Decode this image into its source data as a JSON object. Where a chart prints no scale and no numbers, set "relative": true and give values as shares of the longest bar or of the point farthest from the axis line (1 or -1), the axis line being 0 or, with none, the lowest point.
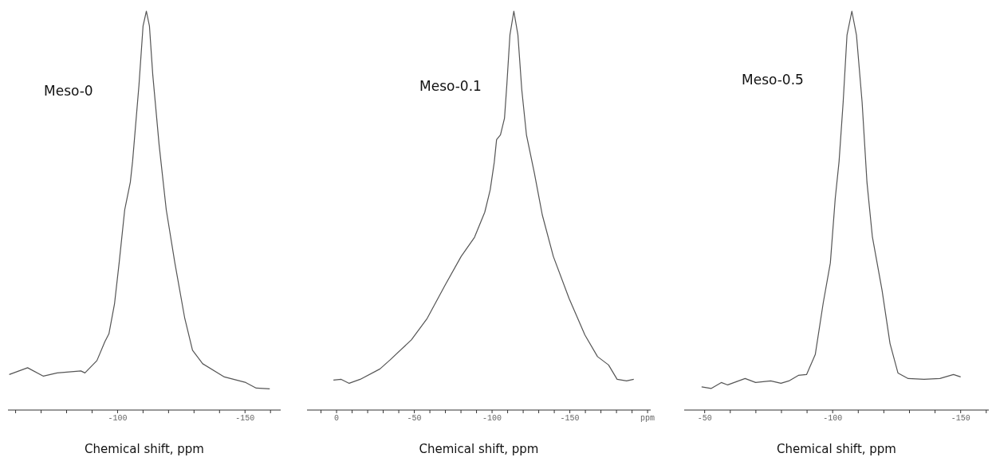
{
  "chart_data": [
    {
      "type": "line",
      "relative": true,
      "tick_labels": "x",
      "xlabel": "Chemical shift, ppm",
      "xlim": [
        -57,
        -164
      ],
      "xticks": [
        {
          "value": -60,
          "label": null
        },
        {
          "value": -70,
          "label": null
        },
        {
          "value": -80,
          "label": null
        },
        {
          "value": -90,
          "label": null
        },
        -100,
        {
          "value": -110,
          "label": null
        },
        {
          "value": -120,
          "label": null
        },
        {
          "value": -130,
          "label": null
        },
        {
          "value": -140,
          "label": null
        },
        -150,
        {
          "value": -160,
          "label": null
        }
      ],
      "x": [
        -57.5,
        -64.7,
        -70.9,
        -76.3,
        -85.6,
        -87.2,
        -91.9,
        -95,
        -96.6,
        -98.8,
        -100.6,
        -102.8,
        -105,
        -105.9,
        -108.4,
        -110,
        -111.3,
        -112.5,
        -113.8,
        -116.3,
        -119.1,
        -122.5,
        -126.3,
        -129.4,
        -133.4,
        -141.9,
        -150.3,
        -154.4,
        -159.7
      ],
      "series": [
        {
          "name": "Meso-0",
          "color": "#555555",
          "values": [
            0.089,
            0.106,
            0.085,
            0.093,
            0.098,
            0.093,
            0.124,
            0.171,
            0.191,
            0.266,
            0.368,
            0.502,
            0.571,
            0.624,
            0.815,
            0.963,
            1,
            0.963,
            0.841,
            0.665,
            0.502,
            0.368,
            0.232,
            0.15,
            0.116,
            0.083,
            0.069,
            0.055,
            0.053
          ]
        }
      ]
    },
    {
      "type": "line",
      "relative": true,
      "tick_labels": "x",
      "xlabel": "Chemical shift, ppm",
      "xlim": [
        19,
        -202
      ],
      "xticks": [
        {
          "value": 10,
          "label": null
        },
        0,
        {
          "value": -10,
          "label": null
        },
        {
          "value": -20,
          "label": null
        },
        {
          "value": -30,
          "label": null
        },
        {
          "value": -40,
          "label": null
        },
        -50,
        {
          "value": -60,
          "label": null
        },
        {
          "value": -70,
          "label": null
        },
        {
          "value": -80,
          "label": null
        },
        {
          "value": -90,
          "label": null
        },
        -100,
        {
          "value": -110,
          "label": null
        },
        {
          "value": -120,
          "label": null
        },
        {
          "value": -130,
          "label": null
        },
        {
          "value": -140,
          "label": null
        },
        -150,
        {
          "value": -160,
          "label": null
        },
        {
          "value": -170,
          "label": null
        },
        {
          "value": -180,
          "label": null
        },
        {
          "value": -190,
          "label": null
        },
        {
          "value": -200,
          "label": "ppm"
        }
      ],
      "x": [
        2,
        -3,
        -8.1,
        -15.2,
        -27.9,
        -34.5,
        -48.1,
        -58.3,
        -69.9,
        -80.1,
        -88.7,
        -95.3,
        -98.8,
        -101.4,
        -102.9,
        -105.4,
        -108,
        -109.5,
        -111.5,
        -114,
        -116.6,
        -119.1,
        -122.1,
        -127.2,
        -132.3,
        -139.4,
        -149.5,
        -159.7,
        -167.8,
        -174.9,
        -180.4,
        -186.5,
        -191.1
      ],
      "series": [
        {
          "name": "Meso-0.1",
          "color": "#555555",
          "values": [
            0.075,
            0.077,
            0.067,
            0.077,
            0.103,
            0.126,
            0.176,
            0.23,
            0.314,
            0.385,
            0.433,
            0.496,
            0.552,
            0.621,
            0.678,
            0.69,
            0.732,
            0.816,
            0.941,
            1,
            0.941,
            0.803,
            0.69,
            0.594,
            0.489,
            0.385,
            0.28,
            0.188,
            0.134,
            0.113,
            0.077,
            0.073,
            0.077
          ]
        }
      ]
    },
    {
      "type": "line",
      "relative": true,
      "tick_labels": "x",
      "xlabel": "Chemical shift, ppm",
      "xlim": [
        -42,
        -161
      ],
      "xticks": [
        -50,
        {
          "value": -60,
          "label": null
        },
        {
          "value": -70,
          "label": null
        },
        {
          "value": -80,
          "label": null
        },
        {
          "value": -90,
          "label": null
        },
        -100,
        {
          "value": -110,
          "label": null
        },
        {
          "value": -120,
          "label": null
        },
        {
          "value": -130,
          "label": null
        },
        {
          "value": -140,
          "label": null
        },
        -150,
        {
          "value": -160,
          "label": null
        }
      ],
      "x": [
        -48.8,
        -52.5,
        -56.5,
        -59,
        -65.8,
        -69.9,
        -75.8,
        -79.8,
        -82.9,
        -86.6,
        -89.8,
        -93.2,
        -96.3,
        -99.1,
        -101,
        -102.5,
        -104.1,
        -105.6,
        -107.5,
        -109.3,
        -111.5,
        -113.4,
        -115.5,
        -119.3,
        -122.4,
        -125.5,
        -129.5,
        -135.7,
        -141.9,
        -147.2,
        -150
      ],
      "series": [
        {
          "name": "Meso-0.5",
          "color": "#555555",
          "values": [
            0.058,
            0.054,
            0.069,
            0.063,
            0.079,
            0.069,
            0.073,
            0.067,
            0.073,
            0.087,
            0.089,
            0.139,
            0.268,
            0.369,
            0.53,
            0.623,
            0.772,
            0.94,
            1,
            0.94,
            0.772,
            0.571,
            0.435,
            0.3,
            0.167,
            0.093,
            0.079,
            0.077,
            0.079,
            0.089,
            0.083
          ]
        }
      ]
    }
  ]
}
